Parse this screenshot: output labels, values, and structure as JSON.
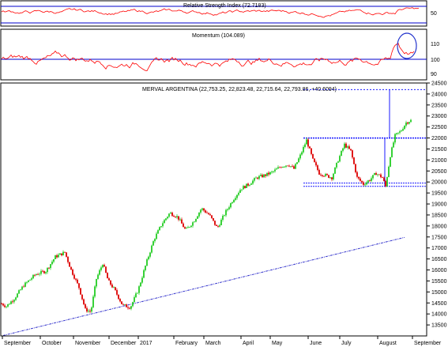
{
  "colors": {
    "panel_border": "#000000",
    "osc_line": "#ff0000",
    "ref_line": "#0000cc",
    "bull": "#22cc22",
    "bear": "#dd0000",
    "trend": "#3333cc",
    "level": "#1a1aff",
    "circle": "#2233cc"
  },
  "rsi": {
    "title": "Relative Strength Index (72.7183)",
    "ticks": [
      "50"
    ],
    "levels": [
      70,
      30
    ]
  },
  "momentum": {
    "title": "Momentum (104.089)",
    "ticks": [
      "110",
      "100",
      "90"
    ],
    "ref_level": 100
  },
  "chart_data": {
    "type": "candlestick",
    "title": "MERVAL ARGENTINA (22,753.25, 22,823.48, 22,715.64, 22,793.86, +40.6094)",
    "ylim": [
      13000,
      24500
    ],
    "yticks": [
      13500,
      14000,
      14500,
      15000,
      15500,
      16000,
      16500,
      17000,
      17500,
      18000,
      18500,
      19000,
      19500,
      20000,
      20500,
      21000,
      21500,
      22000,
      22500,
      23000,
      23500,
      24000,
      24500
    ],
    "months": [
      "September",
      "October",
      "November",
      "December",
      "2017",
      "February",
      "March",
      "April",
      "May",
      "June",
      "July",
      "August",
      "September"
    ],
    "last_ohlc": {
      "open": 22753.25,
      "high": 22823.48,
      "low": 22715.64,
      "close": 22793.86,
      "change": 40.6094
    },
    "price_path": [
      [
        0,
        14500
      ],
      [
        8,
        14350
      ],
      [
        18,
        14700
      ],
      [
        30,
        15300
      ],
      [
        45,
        15800
      ],
      [
        58,
        15950
      ],
      [
        70,
        16600
      ],
      [
        82,
        16800
      ],
      [
        90,
        16000
      ],
      [
        100,
        15200
      ],
      [
        108,
        14200
      ],
      [
        115,
        14100
      ],
      [
        122,
        15600
      ],
      [
        130,
        16300
      ],
      [
        137,
        15500
      ],
      [
        145,
        15100
      ],
      [
        155,
        14400
      ],
      [
        165,
        14300
      ],
      [
        175,
        15100
      ],
      [
        185,
        16300
      ],
      [
        195,
        17400
      ],
      [
        205,
        18100
      ],
      [
        215,
        18600
      ],
      [
        225,
        18400
      ],
      [
        235,
        17800
      ],
      [
        245,
        18200
      ],
      [
        255,
        18800
      ],
      [
        265,
        18500
      ],
      [
        275,
        17900
      ],
      [
        285,
        18600
      ],
      [
        295,
        19200
      ],
      [
        305,
        19700
      ],
      [
        315,
        19900
      ],
      [
        325,
        20200
      ],
      [
        335,
        20300
      ],
      [
        345,
        20450
      ],
      [
        355,
        20700
      ],
      [
        365,
        20800
      ],
      [
        372,
        20600
      ],
      [
        380,
        21200
      ],
      [
        388,
        21900
      ],
      [
        396,
        21000
      ],
      [
        404,
        20400
      ],
      [
        412,
        20300
      ],
      [
        420,
        20200
      ],
      [
        428,
        21000
      ],
      [
        436,
        21700
      ],
      [
        444,
        21400
      ],
      [
        452,
        20200
      ],
      [
        460,
        19900
      ],
      [
        468,
        20100
      ],
      [
        476,
        20400
      ],
      [
        484,
        20200
      ],
      [
        488,
        19800
      ],
      [
        494,
        21200
      ],
      [
        500,
        22100
      ],
      [
        507,
        22300
      ],
      [
        514,
        22700
      ],
      [
        520,
        22800
      ]
    ],
    "resistance": 22000,
    "support_lines": [
      19950,
      19800
    ],
    "target_level": 24200,
    "trendline": [
      [
        0,
        13020
      ],
      [
        512,
        17480
      ]
    ]
  }
}
